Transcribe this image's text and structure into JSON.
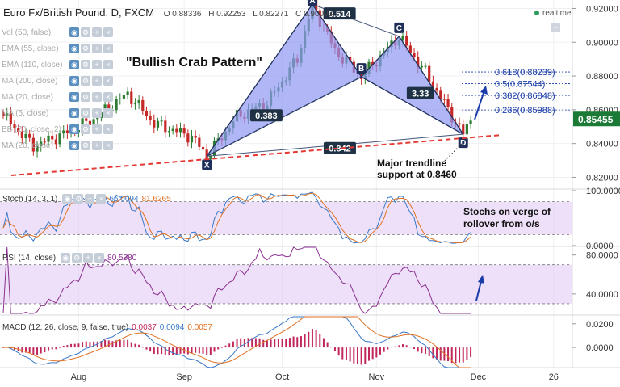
{
  "header": {
    "title": "Euro Fx/British Pound, D, FXCM",
    "ohlc": {
      "o": "O 0.88336",
      "h": "H 0.92253",
      "l": "L 0.82271",
      "c": "C 0.90003"
    },
    "realtime": "realtime"
  },
  "indicators": [
    {
      "label": "Vol (50, false)"
    },
    {
      "label": "EMA (55, close)"
    },
    {
      "label": "EMA (110, close)"
    },
    {
      "label": "MA (200, close)"
    },
    {
      "label": "MA (20, close)"
    },
    {
      "label": "MA (5, close)"
    },
    {
      "label": "BB (20, close, 2)"
    },
    {
      "label": "MA (20, close)"
    }
  ],
  "panes": {
    "stoch": {
      "label": "Stoch (14, 3, 1)",
      "k": "66.0094",
      "d": "81.6265"
    },
    "rsi": {
      "label": "RSI (14, close)",
      "value": "80.5980"
    },
    "macd": {
      "label": "MACD (12, 26, close, 9, false, true)",
      "hist": "0.0037",
      "macd": "0.0094",
      "signal": "0.0057"
    }
  },
  "chart_data": [
    {
      "type": "candlestick",
      "title": "Euro Fx/British Pound, D, FXCM",
      "x_ticks": [
        "Aug",
        "Sep",
        "Oct",
        "Nov",
        "Dec",
        "26"
      ],
      "y_ticks": [
        "0.82000",
        "0.84000",
        "0.86000",
        "0.88000",
        "0.90000",
        "0.92000"
      ],
      "ylim": [
        0.814,
        0.925
      ],
      "last_price": "0.85455",
      "pattern": {
        "name": "\"Bullish Crab Pattern\"",
        "points": [
          {
            "label": "X",
            "price": 0.8325
          },
          {
            "label": "A",
            "price": 0.9225
          },
          {
            "label": "B",
            "price": 0.8795
          },
          {
            "label": "C",
            "price": 0.9035
          },
          {
            "label": "D",
            "price": 0.8455
          }
        ],
        "ratios": [
          "0.383",
          "0.514",
          "3.33",
          "0.842"
        ]
      },
      "fib_levels": [
        {
          "label": "0.618(0.88239)",
          "value": 0.88239
        },
        {
          "label": "0.5(0.87544)",
          "value": 0.87544
        },
        {
          "label": "0.382(0.86848)",
          "value": 0.86848
        },
        {
          "label": "0.236(0.85988)",
          "value": 0.85988
        }
      ],
      "annotations": [
        "Major trendline",
        "support at 0.8460"
      ]
    },
    {
      "type": "line",
      "title": "Stoch (14, 3, 1)",
      "y_ticks": [
        "0.0000",
        "100.0000"
      ],
      "ylim": [
        0,
        100
      ],
      "levels": [
        80,
        20
      ],
      "series": [
        {
          "name": "%K",
          "color": "#3a78c8"
        },
        {
          "name": "%D",
          "color": "#e07020"
        }
      ],
      "annotation": [
        "Stochs on verge of",
        "rollover from o/s"
      ]
    },
    {
      "type": "line",
      "title": "RSI (14, close)",
      "y_ticks": [
        "40.0000",
        "80.0000"
      ],
      "ylim": [
        20,
        88
      ],
      "levels": [
        70,
        30
      ],
      "series": [
        {
          "name": "RSI",
          "color": "#8a3090"
        }
      ]
    },
    {
      "type": "bar",
      "title": "MACD (12, 26, close, 9, false, true)",
      "y_ticks": [
        "0.0000",
        "0.0200"
      ],
      "ylim": [
        -0.017,
        0.026
      ],
      "series": [
        {
          "name": "Histogram",
          "color": "#c0285a"
        },
        {
          "name": "MACD",
          "color": "#3a78c8"
        },
        {
          "name": "Signal",
          "color": "#e07020"
        }
      ]
    }
  ],
  "colors": {
    "up": "#2e7d32",
    "down": "#c62828",
    "pattern_fill": "#8e97f2",
    "trendline": "#e53935",
    "pane_fill": "#e3ccf3",
    "last_price_bg": "#1b7a35"
  }
}
